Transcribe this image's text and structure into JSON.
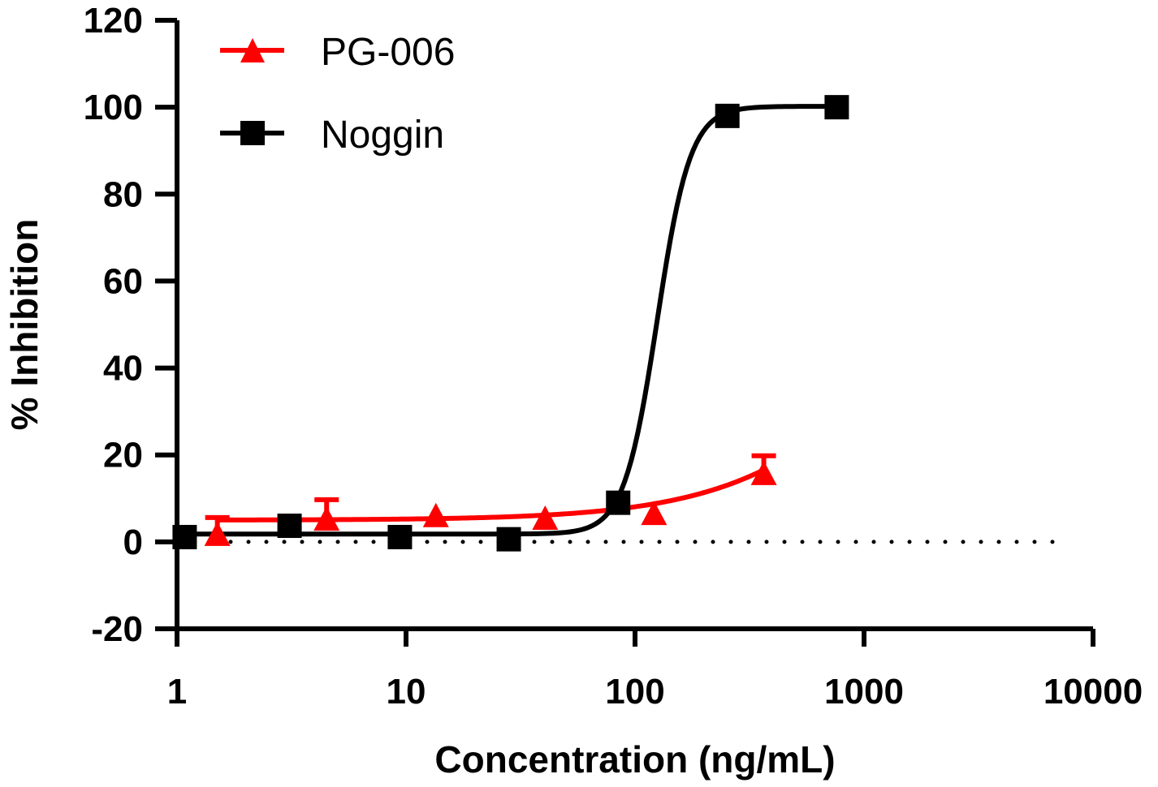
{
  "chart_data": {
    "type": "line",
    "title": "",
    "xlabel": "Concentration (ng/mL)",
    "ylabel": "% Inhibition",
    "xscale": "log",
    "xlim": [
      1,
      10000
    ],
    "ylim": [
      -20,
      120
    ],
    "x_ticks": [
      1,
      10,
      100,
      1000,
      10000
    ],
    "x_tick_labels": [
      "1",
      "10",
      "100",
      "1000",
      "10000"
    ],
    "y_ticks": [
      -20,
      0,
      20,
      40,
      60,
      80,
      100,
      120
    ],
    "y_tick_labels": [
      "-20",
      "0",
      "20",
      "40",
      "60",
      "80",
      "100",
      "120"
    ],
    "reference_line": {
      "y": 0,
      "style": "dotted"
    },
    "grid": false,
    "legend": {
      "position": "top-left",
      "entries": [
        "PG-006",
        "Noggin"
      ]
    },
    "series": [
      {
        "name": "PG-006",
        "color": "#ff0000",
        "marker": "triangle",
        "x": [
          1.5,
          4.5,
          13.5,
          40.5,
          121,
          365
        ],
        "y": [
          1.5,
          5.0,
          5.8,
          5.2,
          6.3,
          15.5
        ],
        "error_upper": [
          5.6,
          9.7,
          null,
          null,
          null,
          19.8
        ],
        "fit": {
          "model": "sigmoidal",
          "bottom": 5.0,
          "top": 100,
          "ec50": 2200,
          "hill": 1.1
        }
      },
      {
        "name": "Noggin",
        "color": "#000000",
        "marker": "square",
        "x": [
          1.08,
          3.1,
          9.4,
          28.1,
          84.4,
          253,
          760
        ],
        "y": [
          1.1,
          3.7,
          1.1,
          0.6,
          9.0,
          98.0,
          100.0
        ],
        "error_upper": [
          null,
          null,
          null,
          null,
          null,
          null,
          null
        ],
        "fit": {
          "model": "sigmoidal",
          "bottom": 1.8,
          "top": 100.2,
          "ec50": 125,
          "hill": 6.0
        }
      }
    ]
  }
}
